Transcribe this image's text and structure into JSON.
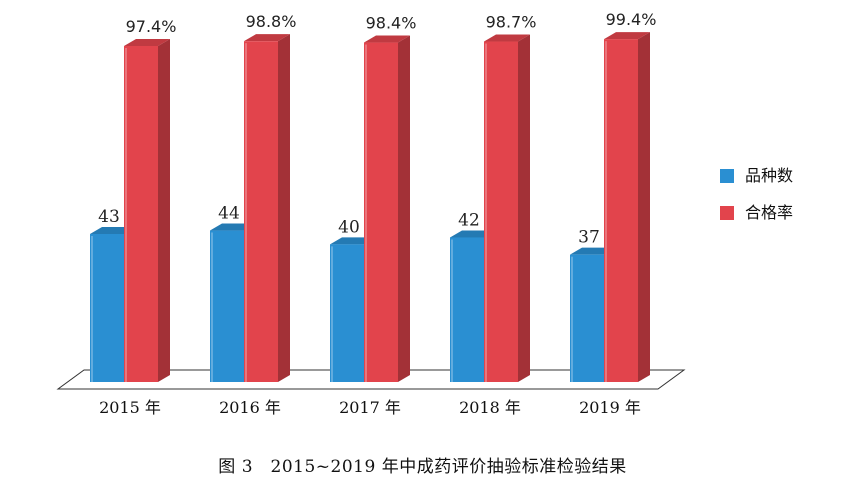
{
  "chart_data": {
    "type": "bar",
    "categories": [
      "2015 年",
      "2016 年",
      "2017 年",
      "2018 年",
      "2019 年"
    ],
    "series": [
      {
        "name": "品种数",
        "values": [
          43,
          44,
          40,
          42,
          37
        ],
        "labels": [
          "43",
          "44",
          "40",
          "42",
          "37"
        ],
        "color": "#2a8fd2"
      },
      {
        "name": "合格率",
        "values": [
          97.4,
          98.8,
          98.4,
          98.7,
          99.4
        ],
        "labels": [
          "97.4%",
          "98.8%",
          "98.4%",
          "98.7%",
          "99.4%"
        ],
        "color": "#e2444c"
      }
    ],
    "legend_position": "right",
    "grid": false,
    "caption": "图 3　2015~2019 年中成药评价抽验标准检验结果"
  }
}
